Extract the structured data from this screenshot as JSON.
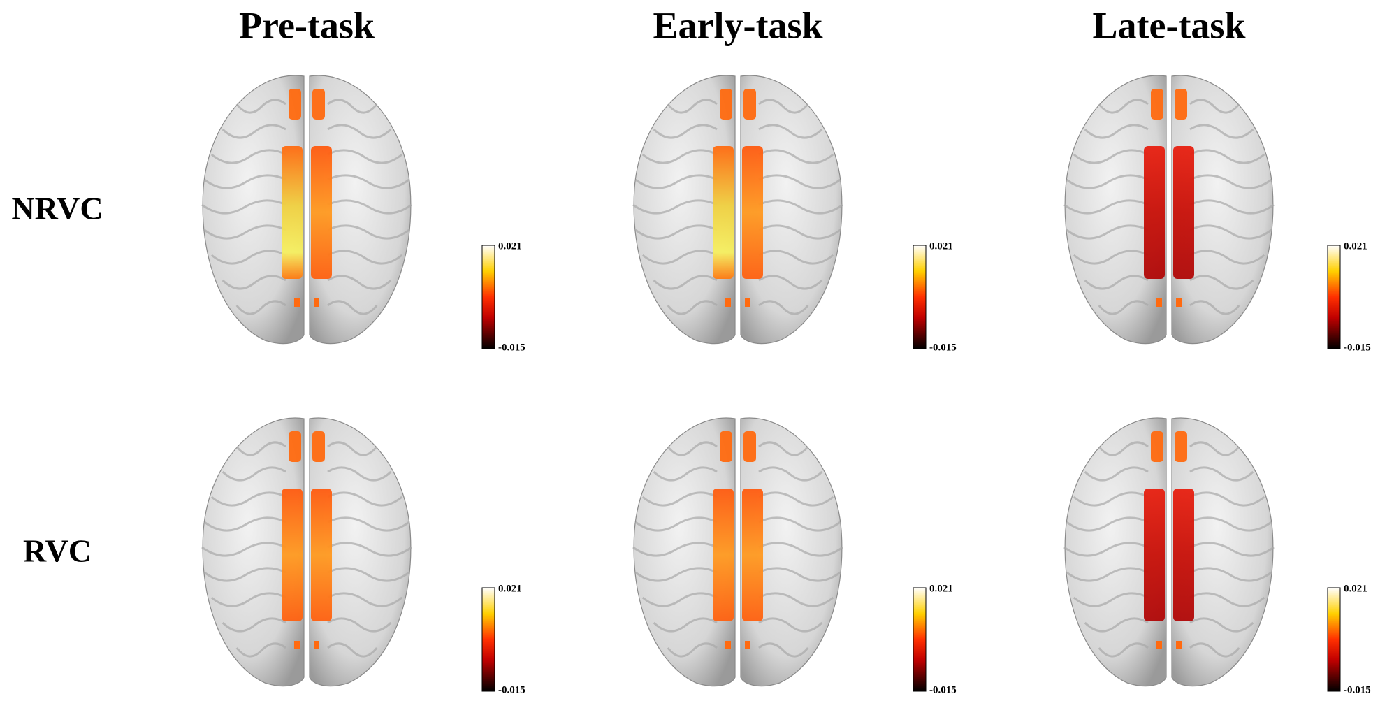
{
  "columns": [
    "Pre-task",
    "Early-task",
    "Late-task"
  ],
  "rows": [
    "NRVC",
    "RVC"
  ],
  "panels": [
    {
      "colorbar": {
        "max": 0.021,
        "min": -0.015
      }
    },
    {
      "colorbar": {
        "max": 0.021,
        "min": -0.015
      }
    },
    {
      "colorbar": {
        "max": 0.021,
        "min": -0.015
      }
    },
    {
      "colorbar": {
        "max": 0.021,
        "min": -0.015
      }
    },
    {
      "colorbar": {
        "max": 0.021,
        "min": -0.015
      }
    },
    {
      "colorbar": {
        "max": 0.021,
        "min": -0.015
      }
    }
  ]
}
